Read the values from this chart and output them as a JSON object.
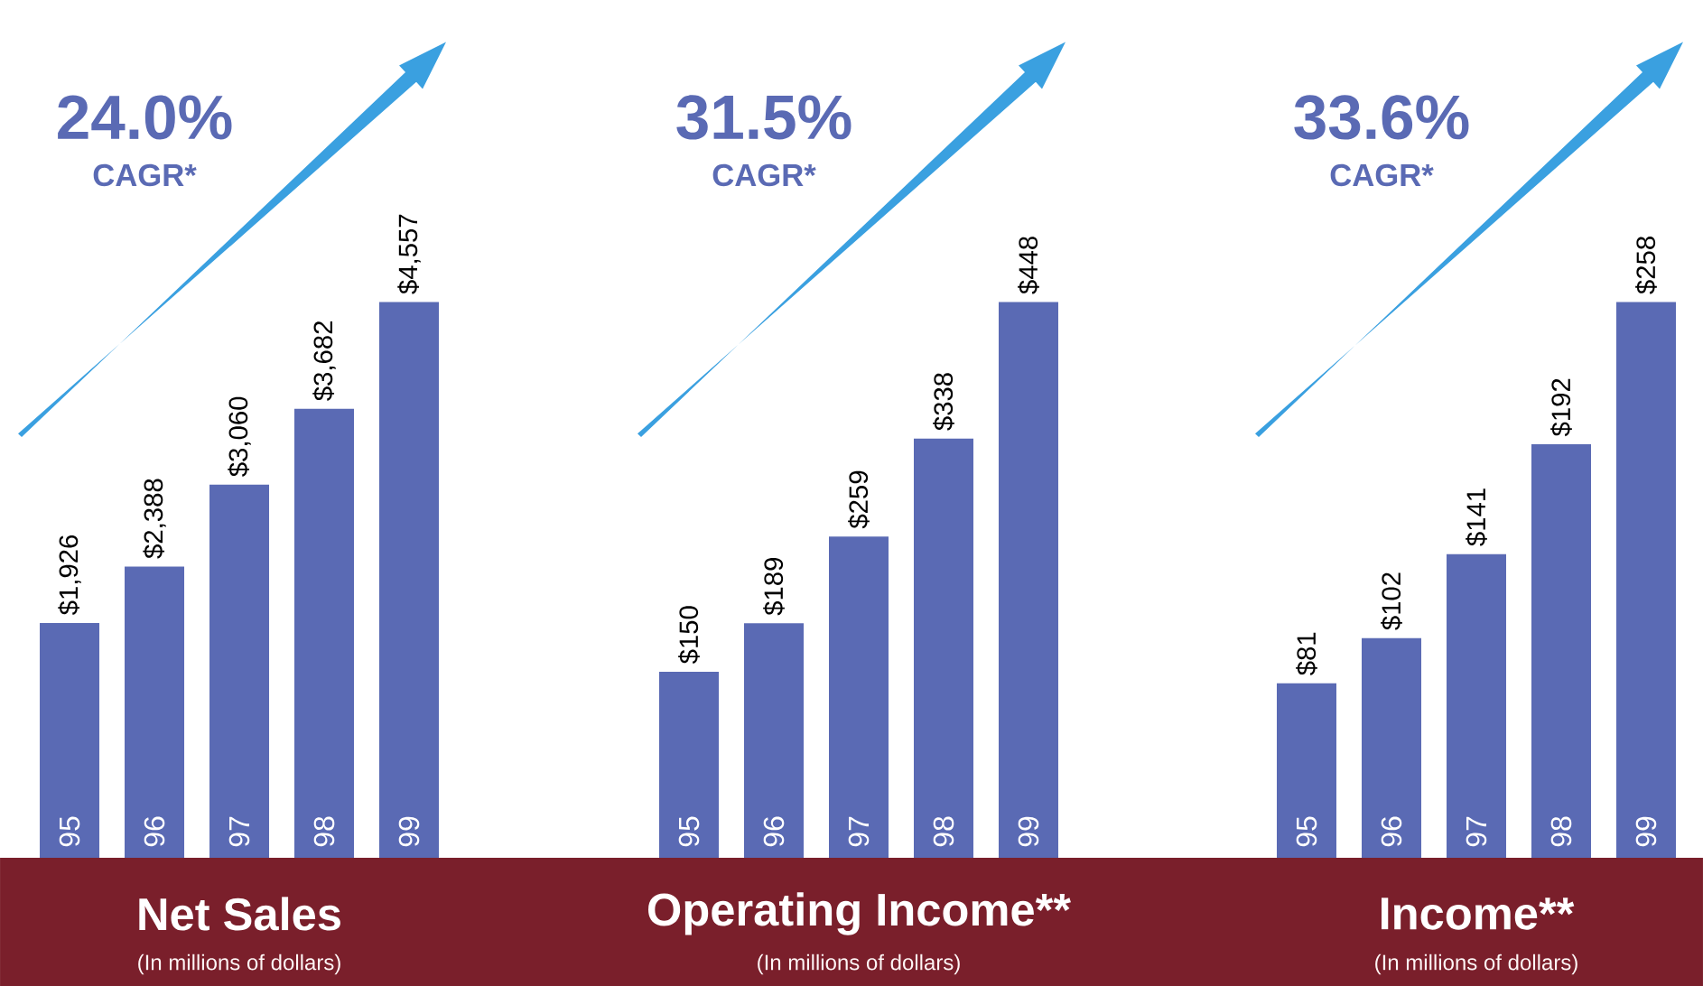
{
  "chart_data": [
    {
      "type": "bar",
      "title": "Net Sales",
      "subtitle": "(In millions of dollars)",
      "categories": [
        "95",
        "96",
        "97",
        "98",
        "99"
      ],
      "values": [
        1926,
        2388,
        3060,
        3682,
        4557
      ],
      "value_labels": [
        "$1,926",
        "$2,388",
        "$3,060",
        "$3,682",
        "$4,557"
      ],
      "color": "#5a6ab4",
      "annotations": [
        "24.0%",
        "CAGR*"
      ]
    },
    {
      "type": "bar",
      "title": "Operating Income**",
      "subtitle": "(In millions of dollars)",
      "categories": [
        "95",
        "96",
        "97",
        "98",
        "99"
      ],
      "values": [
        150,
        189,
        259,
        338,
        448
      ],
      "value_labels": [
        "$150",
        "$189",
        "$259",
        "$338",
        "$448"
      ],
      "color": "#5a6ab4",
      "annotations": [
        "31.5%",
        "CAGR*"
      ]
    },
    {
      "type": "bar",
      "title": "Income**",
      "subtitle": "(In millions of dollars)",
      "categories": [
        "95",
        "96",
        "97",
        "98",
        "99"
      ],
      "values": [
        81,
        102,
        141,
        192,
        258
      ],
      "value_labels": [
        "$81",
        "$102",
        "$141",
        "$192",
        "$258"
      ],
      "color": "#5a6ab4",
      "annotations": [
        "33.6%",
        "CAGR*"
      ]
    }
  ]
}
